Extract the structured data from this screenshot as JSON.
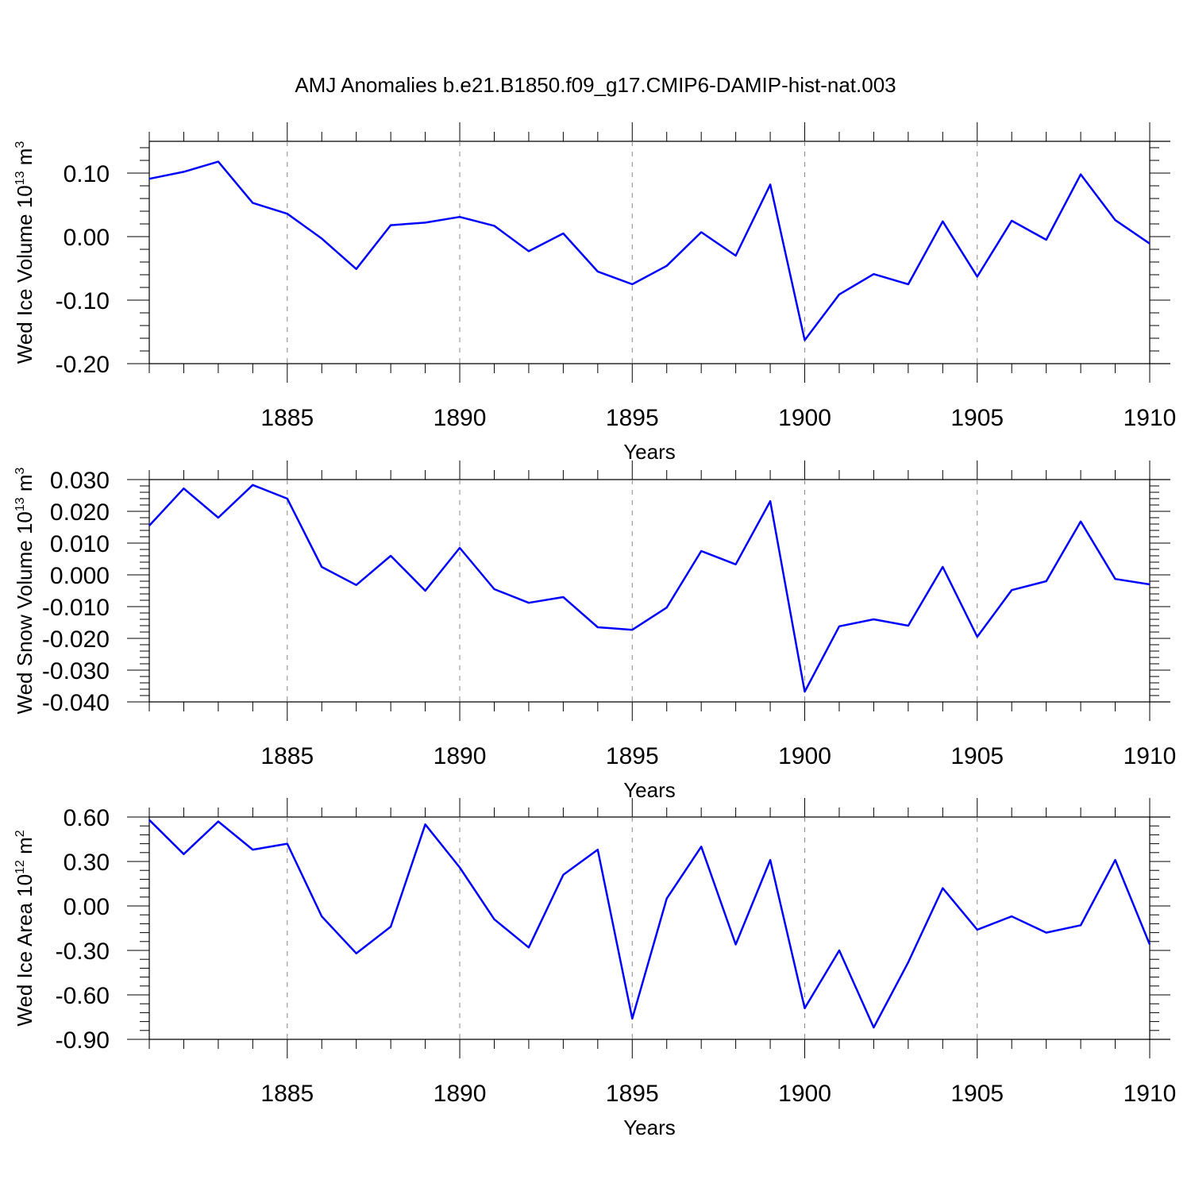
{
  "title": "AMJ Anomalies b.e21.B1850.f09_g17.CMIP6-DAMIP-hist-nat.003",
  "line_color": "#0000ff",
  "chart_data": [
    {
      "type": "line",
      "ylabel": "Wed Ice Volume 10",
      "ylabel_exp": "13",
      "ylabel_unit": " m",
      "ylabel_unit_exp": "3",
      "xlabel": "Years",
      "xlim": [
        1881,
        1910
      ],
      "ylim": [
        -0.2,
        0.15
      ],
      "yticks": [
        -0.2,
        -0.1,
        0.0,
        0.1
      ],
      "ytick_labels": [
        "-0.20",
        "-0.10",
        "0.00",
        "0.10"
      ],
      "xticks": [
        1885,
        1890,
        1895,
        1900,
        1905,
        1910
      ],
      "xtick_labels": [
        "1885",
        "1890",
        "1895",
        "1900",
        "1905",
        "1910"
      ],
      "x": [
        1881,
        1882,
        1883,
        1884,
        1885,
        1886,
        1887,
        1888,
        1889,
        1890,
        1891,
        1892,
        1893,
        1894,
        1895,
        1896,
        1897,
        1898,
        1899,
        1900,
        1901,
        1902,
        1903,
        1904,
        1905,
        1906,
        1907,
        1908,
        1909,
        1910
      ],
      "series": [
        {
          "name": "Wed Ice Volume",
          "values": [
            0.091,
            0.102,
            0.118,
            0.053,
            0.036,
            -0.003,
            -0.051,
            0.018,
            0.022,
            0.031,
            0.017,
            -0.023,
            0.005,
            -0.055,
            -0.075,
            -0.046,
            0.007,
            -0.03,
            0.082,
            -0.163,
            -0.091,
            -0.059,
            -0.075,
            0.024,
            -0.063,
            0.025,
            -0.005,
            0.098,
            0.026,
            -0.011
          ]
        }
      ]
    },
    {
      "type": "line",
      "ylabel": "Wed Snow Volume 10",
      "ylabel_exp": "13",
      "ylabel_unit": " m",
      "ylabel_unit_exp": "3",
      "xlabel": "Years",
      "xlim": [
        1881,
        1910
      ],
      "ylim": [
        -0.04,
        0.03
      ],
      "yticks": [
        -0.04,
        -0.03,
        -0.02,
        -0.01,
        0.0,
        0.01,
        0.02,
        0.03
      ],
      "ytick_labels": [
        "-0.040",
        "-0.030",
        "-0.020",
        "-0.010",
        "0.000",
        "0.010",
        "0.020",
        "0.030"
      ],
      "xticks": [
        1885,
        1890,
        1895,
        1900,
        1905,
        1910
      ],
      "xtick_labels": [
        "1885",
        "1890",
        "1895",
        "1900",
        "1905",
        "1910"
      ],
      "x": [
        1881,
        1882,
        1883,
        1884,
        1885,
        1886,
        1887,
        1888,
        1889,
        1890,
        1891,
        1892,
        1893,
        1894,
        1895,
        1896,
        1897,
        1898,
        1899,
        1900,
        1901,
        1902,
        1903,
        1904,
        1905,
        1906,
        1907,
        1908,
        1909,
        1910
      ],
      "series": [
        {
          "name": "Wed Snow Volume",
          "values": [
            0.0155,
            0.0272,
            0.018,
            0.0283,
            0.024,
            0.0025,
            -0.0032,
            0.006,
            -0.005,
            0.0085,
            -0.0045,
            -0.0088,
            -0.007,
            -0.0165,
            -0.0173,
            -0.0103,
            0.0075,
            0.0033,
            0.0232,
            -0.0368,
            -0.0162,
            -0.014,
            -0.016,
            0.0025,
            -0.0195,
            -0.0048,
            -0.002,
            0.0168,
            -0.0013,
            -0.003
          ]
        }
      ]
    },
    {
      "type": "line",
      "ylabel": "Wed Ice Area 10",
      "ylabel_exp": "12",
      "ylabel_unit": " m",
      "ylabel_unit_exp": "2",
      "xlabel": "Years",
      "xlim": [
        1881,
        1910
      ],
      "ylim": [
        -0.9,
        0.6
      ],
      "yticks": [
        -0.9,
        -0.6,
        -0.3,
        0.0,
        0.3,
        0.6
      ],
      "ytick_labels": [
        "-0.90",
        "-0.60",
        "-0.30",
        "0.00",
        "0.30",
        "0.60"
      ],
      "xticks": [
        1885,
        1890,
        1895,
        1900,
        1905,
        1910
      ],
      "xtick_labels": [
        "1885",
        "1890",
        "1895",
        "1900",
        "1905",
        "1910"
      ],
      "x": [
        1881,
        1882,
        1883,
        1884,
        1885,
        1886,
        1887,
        1888,
        1889,
        1890,
        1891,
        1892,
        1893,
        1894,
        1895,
        1896,
        1897,
        1898,
        1899,
        1900,
        1901,
        1902,
        1903,
        1904,
        1905,
        1906,
        1907,
        1908,
        1909,
        1910
      ],
      "series": [
        {
          "name": "Wed Ice Area",
          "values": [
            0.58,
            0.35,
            0.57,
            0.38,
            0.42,
            -0.07,
            -0.32,
            -0.14,
            0.55,
            0.26,
            -0.09,
            -0.28,
            0.21,
            0.38,
            -0.76,
            0.05,
            0.4,
            -0.26,
            0.31,
            -0.69,
            -0.3,
            -0.82,
            -0.38,
            0.12,
            -0.16,
            -0.07,
            -0.18,
            -0.13,
            0.31,
            -0.26
          ]
        }
      ]
    }
  ]
}
